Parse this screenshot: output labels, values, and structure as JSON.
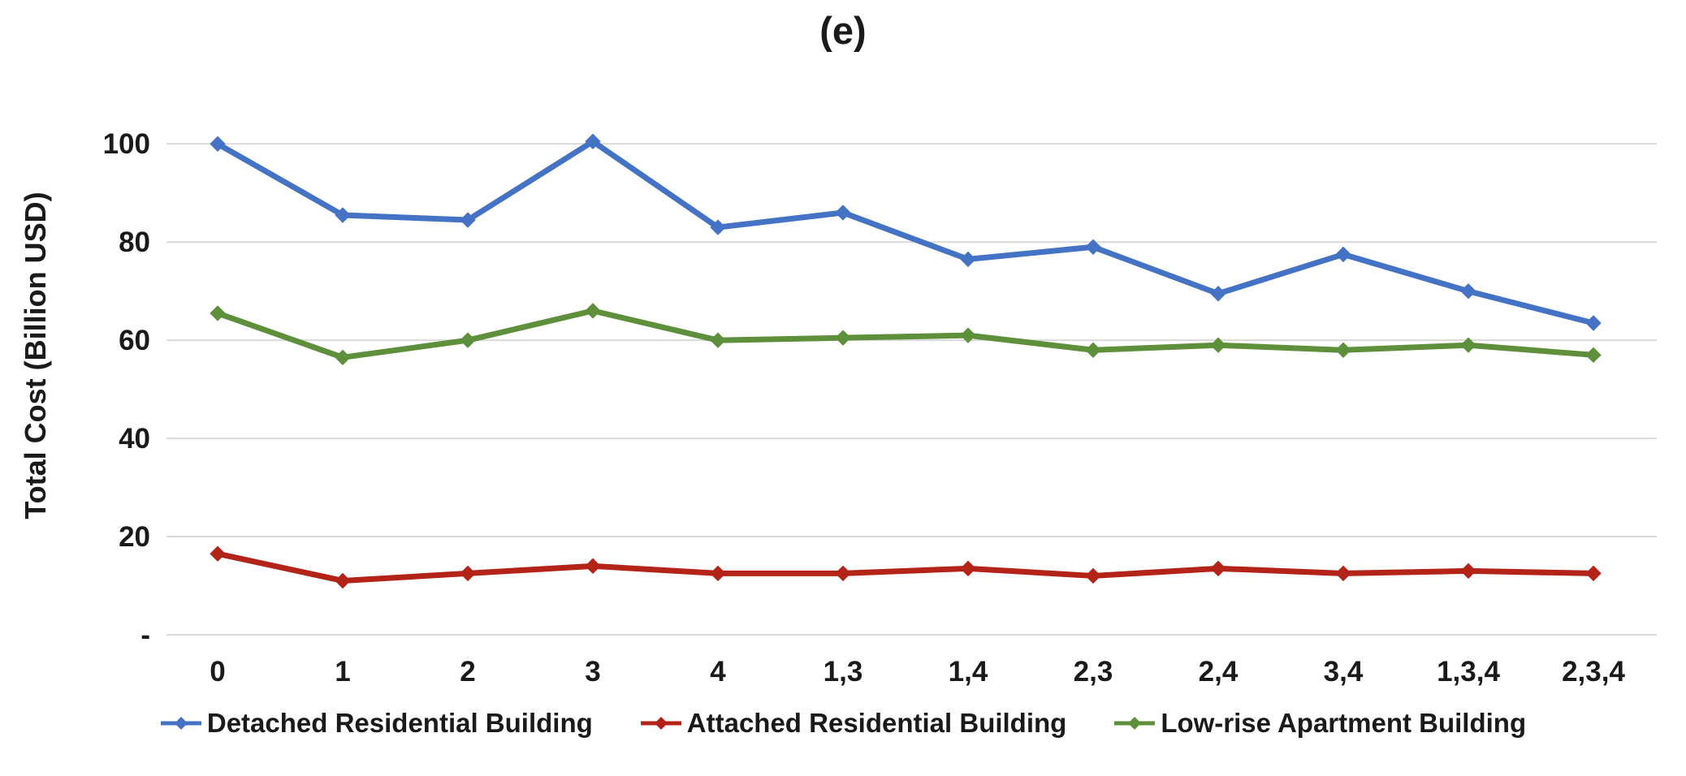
{
  "title": "(e)",
  "colors": {
    "background": "#FFFFFF",
    "grid": "#D9D9D9",
    "text": "#1A1A1A",
    "series_blue": "#4472C4",
    "series_red": "#B42318",
    "series_green": "#5E8F3A"
  },
  "chart_data": {
    "type": "line",
    "title": "(e)",
    "xlabel": "",
    "ylabel": "Total Cost (Billion USD)",
    "ylim": [
      0,
      110
    ],
    "grid": true,
    "legend_position": "bottom",
    "yticks": [
      {
        "value": 0,
        "label": "-"
      },
      {
        "value": 20,
        "label": "20"
      },
      {
        "value": 40,
        "label": "40"
      },
      {
        "value": 60,
        "label": "60"
      },
      {
        "value": 80,
        "label": "80"
      },
      {
        "value": 100,
        "label": "100"
      }
    ],
    "categories": [
      "0",
      "1",
      "2",
      "3",
      "4",
      "1,3",
      "1,4",
      "2,3",
      "2,4",
      "3,4",
      "1,3,4",
      "2,3,4"
    ],
    "series": [
      {
        "name": "Detached Residential Building",
        "color": "#4472C4",
        "marker": "diamond",
        "values": [
          100,
          85.5,
          84.5,
          100.5,
          83,
          86,
          76.5,
          79,
          69.5,
          77.5,
          70,
          63.5
        ]
      },
      {
        "name": "Attached Residential Building",
        "color": "#B42318",
        "marker": "diamond",
        "values": [
          16.5,
          11,
          12.5,
          14,
          12.5,
          12.5,
          13.5,
          12,
          13.5,
          12.5,
          13,
          12.5
        ]
      },
      {
        "name": "Low-rise Apartment Building",
        "color": "#5E8F3A",
        "marker": "diamond",
        "values": [
          65.5,
          56.5,
          60,
          66,
          60,
          60.5,
          61,
          58,
          59,
          58,
          59,
          57
        ]
      }
    ]
  }
}
